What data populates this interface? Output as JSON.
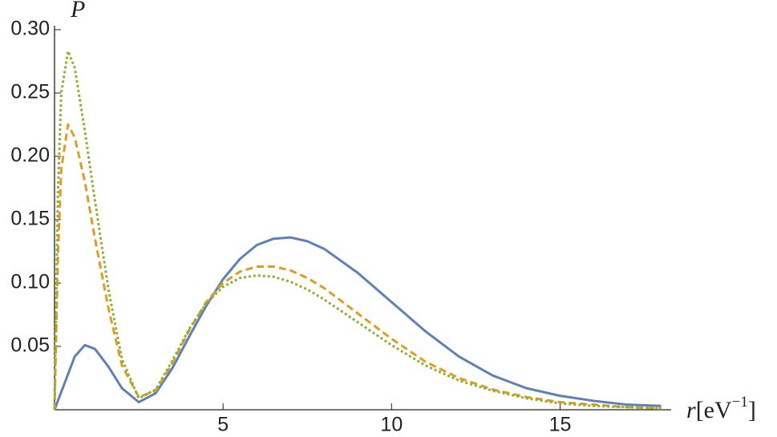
{
  "chart_data": {
    "type": "line",
    "ylabel": "P",
    "xlabel": {
      "var": "r",
      "unit": "[eV",
      "exponent": "−1",
      "close": "]"
    },
    "x": [
      0,
      0.1,
      0.2,
      0.4,
      0.6,
      0.9,
      1.2,
      1.6,
      2,
      2.5,
      3,
      3.5,
      4,
      4.5,
      5,
      5.5,
      6,
      6.5,
      7,
      7.5,
      8,
      9,
      10,
      11,
      12,
      13,
      14,
      15,
      16,
      17,
      18
    ],
    "series": [
      {
        "color": "#5e81b5",
        "dash": "solid",
        "values": [
          0,
          0.007,
          0.014,
          0.028,
          0.042,
          0.051,
          0.048,
          0.034,
          0.017,
          0.006,
          0.013,
          0.033,
          0.058,
          0.082,
          0.103,
          0.119,
          0.13,
          0.135,
          0.136,
          0.133,
          0.127,
          0.108,
          0.085,
          0.062,
          0.042,
          0.027,
          0.017,
          0.011,
          0.007,
          0.004,
          0.003
        ]
      },
      {
        "color": "#e19c24",
        "dash": "dashed",
        "values": [
          0,
          0.12,
          0.19,
          0.225,
          0.215,
          0.18,
          0.135,
          0.08,
          0.035,
          0.01,
          0.015,
          0.037,
          0.063,
          0.085,
          0.1,
          0.109,
          0.113,
          0.113,
          0.11,
          0.104,
          0.096,
          0.076,
          0.056,
          0.038,
          0.025,
          0.016,
          0.01,
          0.006,
          0.004,
          0.002,
          0.001
        ]
      },
      {
        "color": "#8fb032",
        "dash": "dotted",
        "values": [
          0,
          0.17,
          0.25,
          0.283,
          0.27,
          0.22,
          0.165,
          0.095,
          0.04,
          0.009,
          0.016,
          0.039,
          0.064,
          0.084,
          0.097,
          0.104,
          0.106,
          0.105,
          0.101,
          0.095,
          0.087,
          0.069,
          0.051,
          0.035,
          0.023,
          0.015,
          0.009,
          0.005,
          0.003,
          0.002,
          0.001
        ]
      }
    ],
    "xlim": [
      0,
      18.2
    ],
    "ylim": [
      0,
      0.3
    ],
    "xticks": [
      5,
      10,
      15
    ],
    "yticks": [
      0.05,
      {
        "value": 0.1,
        "label": "0.10"
      },
      0.15,
      {
        "value": 0.2,
        "label": "0.20"
      },
      0.25,
      {
        "value": 0.3,
        "label": "0.30"
      }
    ]
  }
}
